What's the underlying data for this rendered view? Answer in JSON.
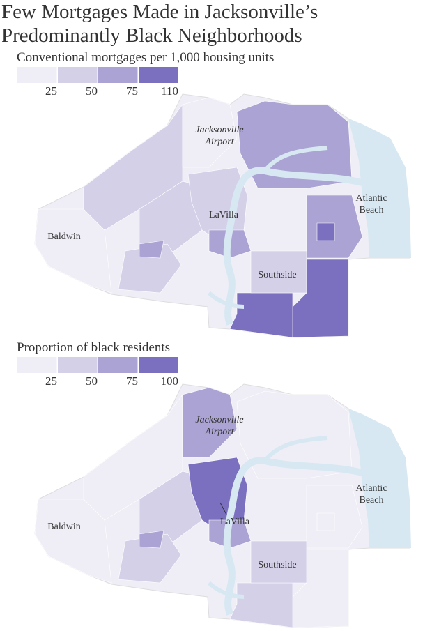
{
  "title": [
    "Few Mortgages Made in Jacksonville’s",
    "Predominantly Black Neighborhoods"
  ],
  "maps": [
    {
      "legend": {
        "title": "Conventional mortgages per 1,000 housing units",
        "breaks": [
          25,
          50,
          75,
          110
        ],
        "colors": [
          "#efeef6",
          "#d3d0e8",
          "#aaa3d3",
          "#7b70bf"
        ]
      },
      "places": {
        "airport": [
          "Jacksonville",
          "Airport"
        ],
        "beach": [
          "Atlantic",
          "Beach"
        ],
        "lavilla": "LaVilla",
        "baldwin": "Baldwin",
        "southside": "Southside"
      }
    },
    {
      "legend": {
        "title": "Proportion of black residents",
        "breaks": [
          25,
          50,
          75,
          100
        ],
        "colors": [
          "#efeef6",
          "#d3d0e8",
          "#aaa3d3",
          "#7b70bf"
        ]
      },
      "places": {
        "airport": [
          "Jacksonville",
          "Airport"
        ],
        "beach": [
          "Atlantic",
          "Beach"
        ],
        "lavilla": "LaVilla",
        "baldwin": "Baldwin",
        "southside": "Southside"
      }
    }
  ]
}
